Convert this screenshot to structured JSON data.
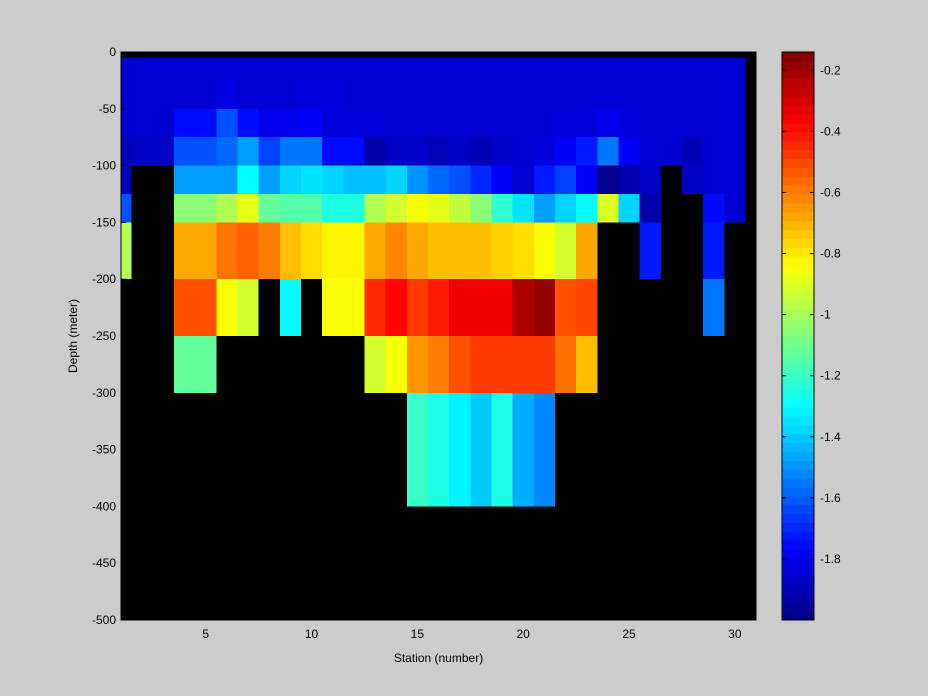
{
  "chart_data": {
    "type": "heatmap",
    "title": "",
    "xlabel": "Station (number)",
    "ylabel": "Depth (meter)",
    "x_ticks": [
      5,
      10,
      15,
      20,
      25,
      30
    ],
    "y_ticks": [
      0,
      -50,
      -100,
      -150,
      -200,
      -250,
      -300,
      -350,
      -400,
      -450,
      -500
    ],
    "xlim": [
      1,
      31
    ],
    "ylim": [
      -500,
      0
    ],
    "colorbar": {
      "colormap": "jet",
      "clim": [
        -2.0,
        -0.14
      ],
      "ticks": [
        -0.2,
        -0.4,
        -0.6,
        -0.8,
        -1,
        -1.2,
        -1.4,
        -1.6,
        -1.8
      ]
    },
    "missing_color": "#000000",
    "stations": [
      1,
      2,
      3,
      4,
      5,
      6,
      7,
      8,
      9,
      10,
      11,
      12,
      13,
      14,
      15,
      16,
      17,
      18,
      19,
      20,
      21,
      22,
      23,
      24,
      25,
      26,
      27,
      28,
      29,
      30
    ],
    "depth_bins": [
      [
        0,
        -5
      ],
      [
        -5,
        -25
      ],
      [
        -25,
        -50
      ],
      [
        -50,
        -75
      ],
      [
        -75,
        -100
      ],
      [
        -100,
        -125
      ],
      [
        -125,
        -150
      ],
      [
        -150,
        -200
      ],
      [
        -200,
        -250
      ],
      [
        -250,
        -300
      ],
      [
        -300,
        -400
      ],
      [
        -400,
        -500
      ]
    ],
    "values": [
      [
        null,
        null,
        null,
        null,
        null,
        null,
        null,
        null,
        null,
        null,
        null,
        null,
        null,
        null,
        null,
        null,
        null,
        null,
        null,
        null,
        null,
        null,
        null,
        null,
        null,
        null,
        null,
        null,
        null,
        null
      ],
      [
        -1.85,
        -1.85,
        -1.85,
        -1.85,
        -1.85,
        -1.85,
        -1.85,
        -1.85,
        -1.85,
        -1.85,
        -1.85,
        -1.85,
        -1.85,
        -1.85,
        -1.85,
        -1.85,
        -1.85,
        -1.85,
        -1.85,
        -1.85,
        -1.85,
        -1.85,
        -1.85,
        -1.85,
        -1.85,
        -1.85,
        -1.85,
        -1.85,
        -1.85,
        -1.85
      ],
      [
        -1.85,
        -1.85,
        -1.85,
        -1.85,
        -1.85,
        -1.82,
        -1.85,
        -1.85,
        -1.85,
        -1.83,
        -1.83,
        -1.85,
        -1.85,
        -1.85,
        -1.85,
        -1.85,
        -1.85,
        -1.85,
        -1.85,
        -1.85,
        -1.85,
        -1.85,
        -1.85,
        -1.85,
        -1.85,
        -1.85,
        -1.85,
        -1.85,
        -1.85,
        -1.85
      ],
      [
        -1.85,
        -1.85,
        -1.85,
        -1.75,
        -1.75,
        -1.62,
        -1.75,
        -1.8,
        -1.8,
        -1.78,
        -1.83,
        -1.83,
        -1.83,
        -1.85,
        -1.85,
        -1.85,
        -1.85,
        -1.85,
        -1.85,
        -1.85,
        -1.85,
        -1.83,
        -1.83,
        -1.8,
        -1.83,
        -1.85,
        -1.85,
        -1.85,
        -1.85,
        -1.85
      ],
      [
        -1.9,
        -1.87,
        -1.87,
        -1.62,
        -1.62,
        -1.58,
        -1.48,
        -1.65,
        -1.55,
        -1.55,
        -1.75,
        -1.75,
        -1.92,
        -1.87,
        -1.87,
        -1.9,
        -1.87,
        -1.9,
        -1.87,
        -1.85,
        -1.83,
        -1.78,
        -1.72,
        -1.55,
        -1.78,
        -1.85,
        -1.85,
        -1.9,
        -1.85,
        -1.85
      ],
      [
        -1.9,
        null,
        null,
        -1.48,
        -1.48,
        -1.48,
        -1.3,
        -1.48,
        -1.38,
        -1.35,
        -1.38,
        -1.42,
        -1.42,
        -1.38,
        -1.5,
        -1.58,
        -1.62,
        -1.7,
        -1.78,
        -1.85,
        -1.72,
        -1.65,
        -1.78,
        -1.98,
        -1.92,
        -1.87,
        null,
        -1.87,
        -1.85,
        -1.85
      ],
      [
        -1.62,
        null,
        null,
        -1.05,
        -1.05,
        -0.98,
        -0.88,
        -1.12,
        -1.15,
        -1.15,
        -1.25,
        -1.25,
        -0.98,
        -0.92,
        -0.85,
        -0.88,
        -0.95,
        -1.05,
        -1.22,
        -1.35,
        -1.48,
        -1.38,
        -1.3,
        -0.9,
        -1.38,
        -1.92,
        null,
        null,
        -1.75,
        -1.85
      ],
      [
        -0.98,
        null,
        null,
        -0.68,
        -0.68,
        -0.58,
        -0.55,
        -0.6,
        -0.72,
        -0.78,
        -0.82,
        -0.82,
        -0.68,
        -0.62,
        -0.68,
        -0.72,
        -0.72,
        -0.72,
        -0.75,
        -0.78,
        -0.85,
        -0.92,
        -0.68,
        null,
        null,
        -1.72,
        null,
        null,
        -1.72,
        null
      ],
      [
        null,
        null,
        null,
        -0.52,
        -0.52,
        -0.85,
        -0.92,
        null,
        -1.3,
        null,
        -0.85,
        -0.85,
        -0.45,
        -0.38,
        -0.48,
        -0.42,
        -0.35,
        -0.35,
        -0.35,
        -0.22,
        -0.18,
        -0.52,
        -0.5,
        null,
        null,
        null,
        null,
        null,
        -1.55,
        null
      ],
      [
        null,
        null,
        null,
        -1.12,
        -1.12,
        null,
        null,
        null,
        null,
        null,
        null,
        null,
        -0.92,
        -0.85,
        -0.65,
        -0.6,
        -0.52,
        -0.48,
        -0.48,
        -0.48,
        -0.48,
        -0.58,
        -0.72,
        null,
        null,
        null,
        null,
        null,
        null,
        null
      ],
      [
        null,
        null,
        null,
        null,
        null,
        null,
        null,
        null,
        null,
        null,
        null,
        null,
        null,
        null,
        -1.2,
        -1.25,
        -1.32,
        -1.4,
        -1.25,
        -1.45,
        -1.52,
        null,
        null,
        null,
        null,
        null,
        null,
        null,
        null,
        null
      ],
      [
        null,
        null,
        null,
        null,
        null,
        null,
        null,
        null,
        null,
        null,
        null,
        null,
        null,
        null,
        null,
        null,
        null,
        null,
        null,
        null,
        null,
        null,
        null,
        null,
        null,
        null,
        null,
        null,
        null,
        null
      ]
    ]
  }
}
